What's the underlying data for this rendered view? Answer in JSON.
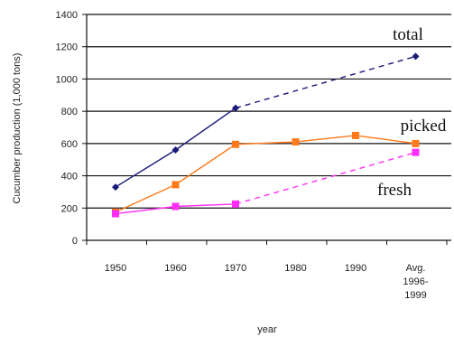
{
  "chart_data": {
    "type": "line",
    "xlabel": "year",
    "ylabel": "Cucumber production (1,000 tons)",
    "ylim": [
      0,
      1400
    ],
    "y_ticks": [
      0,
      200,
      400,
      600,
      800,
      1000,
      1200,
      1400
    ],
    "categories": [
      [
        "1950"
      ],
      [
        "1960"
      ],
      [
        "1970"
      ],
      [
        "1980"
      ],
      [
        "1990"
      ],
      [
        "Avg.",
        "1996-",
        "1999"
      ]
    ],
    "grid": "horizontal",
    "series": [
      {
        "name": "total",
        "color": "#1a1a7a",
        "marker": "diamond",
        "points": [
          [
            0,
            330
          ],
          [
            1,
            560
          ],
          [
            2,
            820
          ],
          [
            5,
            1140
          ]
        ],
        "segment_styles": [
          "solid",
          "solid",
          "dashed"
        ]
      },
      {
        "name": "picked",
        "color": "#ff7a1a",
        "marker": "square",
        "points": [
          [
            0,
            175
          ],
          [
            1,
            345
          ],
          [
            2,
            595
          ],
          [
            3,
            610
          ],
          [
            4,
            650
          ],
          [
            5,
            600
          ]
        ],
        "segment_styles": [
          "solid",
          "solid",
          "solid",
          "solid",
          "solid"
        ]
      },
      {
        "name": "fresh",
        "color": "#ff2df5",
        "marker": "square",
        "points": [
          [
            0,
            165
          ],
          [
            1,
            210
          ],
          [
            2,
            225
          ],
          [
            5,
            545
          ]
        ],
        "segment_styles": [
          "solid",
          "solid",
          "dashed"
        ]
      }
    ]
  }
}
